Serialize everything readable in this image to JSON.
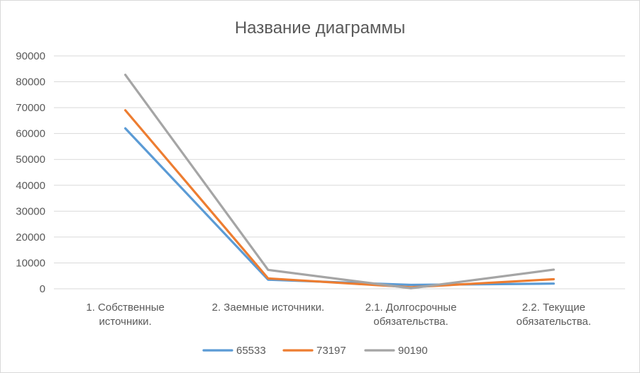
{
  "chart_data": {
    "type": "line",
    "title": "Название диаграммы",
    "xlabel": "",
    "ylabel": "",
    "ylim": [
      0,
      90000
    ],
    "yticks": [
      0,
      10000,
      20000,
      30000,
      40000,
      50000,
      60000,
      70000,
      80000,
      90000
    ],
    "categories": [
      [
        "1. Собственные",
        "источники."
      ],
      [
        "2. Заемные источники."
      ],
      [
        "2.1. Долгосрочные",
        "обязательства."
      ],
      [
        "2.2. Текущие",
        "обязательства."
      ]
    ],
    "series": [
      {
        "name": "65533",
        "color": "#5b9bd5",
        "values": [
          62000,
          3500,
          1500,
          2000
        ]
      },
      {
        "name": "73197",
        "color": "#ed7d31",
        "values": [
          69000,
          4000,
          600,
          3700
        ]
      },
      {
        "name": "90190",
        "color": "#a5a5a5",
        "values": [
          82700,
          7300,
          200,
          7400
        ]
      }
    ],
    "grid": true,
    "legend_position": "bottom"
  }
}
